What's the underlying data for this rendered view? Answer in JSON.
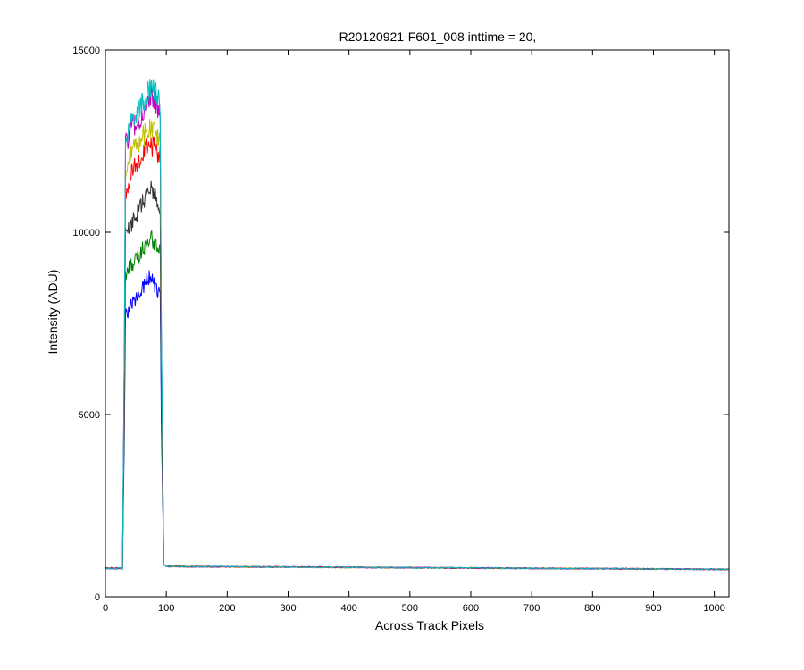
{
  "chart_data": {
    "type": "line",
    "title": "R20120921-F601_008 inttime = 20,",
    "xlabel": "Across Track Pixels",
    "ylabel": "Intensity (ADU)",
    "xlim": [
      0,
      1024
    ],
    "ylim": [
      0,
      15000
    ],
    "xticks": [
      0,
      100,
      200,
      300,
      400,
      500,
      600,
      700,
      800,
      900,
      1000
    ],
    "yticks": [
      0,
      5000,
      10000,
      15000
    ],
    "grid": false,
    "legend": "none",
    "profile": {
      "baseline": 780,
      "baseline_end": 750,
      "rise_start_x": 28,
      "plateau_start_x": 33,
      "plateau_end_x": 90,
      "fall_end_x": 96,
      "tail_x": 100,
      "tail_value": 830
    },
    "series": [
      {
        "color": "#0000ff",
        "values": [
          7700,
          7950,
          8150,
          8350,
          8600,
          8800,
          8500,
          8300
        ]
      },
      {
        "color": "#008000",
        "values": [
          8900,
          9050,
          9250,
          9450,
          9650,
          9850,
          9700,
          9400
        ]
      },
      {
        "color": "#333333",
        "values": [
          9900,
          10200,
          10450,
          10700,
          10950,
          11200,
          11000,
          10700
        ]
      },
      {
        "color": "#ff0000",
        "values": [
          11100,
          11500,
          11800,
          12050,
          12250,
          12400,
          12300,
          12100
        ]
      },
      {
        "color": "#bfbf00",
        "values": [
          11700,
          12100,
          12350,
          12550,
          12700,
          12850,
          12750,
          12550
        ]
      },
      {
        "color": "#bf00bf",
        "values": [
          12400,
          12750,
          13000,
          13200,
          13400,
          13750,
          13600,
          13300
        ]
      },
      {
        "color": "#00bfbf",
        "values": [
          12600,
          12950,
          13200,
          13450,
          13650,
          13950,
          13850,
          13500
        ]
      }
    ]
  }
}
